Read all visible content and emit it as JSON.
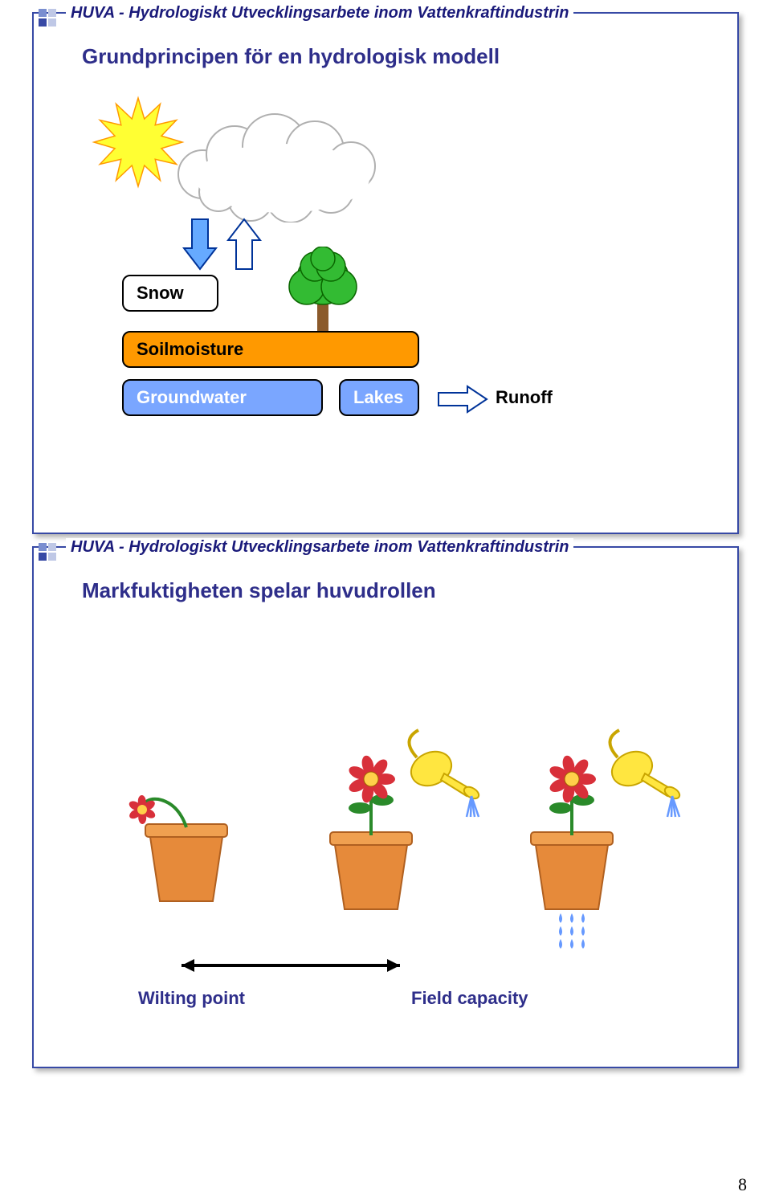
{
  "header_text": "HUVA - Hydrologiskt Utvecklingsarbete inom Vattenkraftindustrin",
  "slide1": {
    "heading": "Grundprincipen för en hydrologisk modell",
    "boxes": {
      "snow": {
        "label": "Snow",
        "bg": "#ffffff",
        "fg": "#000000"
      },
      "soilmoisture": {
        "label": "Soilmoisture",
        "bg": "#ff9900",
        "fg": "#000000"
      },
      "groundwater": {
        "label": "Groundwater",
        "bg": "#7aa6ff",
        "fg": "#ffffff"
      },
      "lakes": {
        "label": "Lakes",
        "bg": "#7aa6ff",
        "fg": "#ffffff"
      }
    },
    "runoff_label": "Runoff",
    "colors": {
      "sun_fill": "#ffff33",
      "sun_stroke": "#ff9900",
      "cloud_stroke": "#b0b0b0",
      "arrow_fill": "#66aaff",
      "arrow_stroke": "#003399",
      "tree_foliage": "#33bb33",
      "tree_outline": "#0a6600",
      "tree_trunk": "#8b5a2b"
    }
  },
  "slide2": {
    "heading": "Markfuktigheten spelar huvudrollen",
    "wilting_point": "Wilting point",
    "field_capacity": "Field capacity",
    "colors": {
      "pot": "#e68a3a",
      "pot_rim": "#f0a050",
      "pot_shadow": "#b06020",
      "flower_petal": "#d8303a",
      "flower_center": "#ffd04a",
      "stem": "#2a8a2a",
      "can_body": "#ffe640",
      "can_outline": "#c9a500",
      "water": "#6699ff",
      "arrow": "#000000",
      "label": "#2e2e8a"
    }
  },
  "corner_colors": [
    "#7a8ed0",
    "#bfc8e6",
    "#3749a5",
    "#bfc8e6"
  ],
  "page_number": "8"
}
